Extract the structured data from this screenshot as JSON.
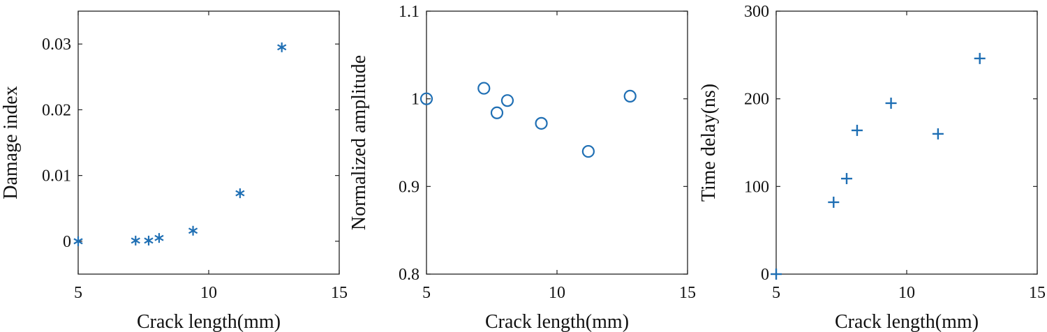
{
  "chart_data": [
    {
      "type": "scatter",
      "marker": "asterisk",
      "color": "#1f6fb4",
      "xlabel": "Crack length(mm)",
      "ylabel": "Damage index",
      "xlim": [
        5,
        15
      ],
      "ylim": [
        -0.005,
        0.035
      ],
      "xticks": [
        5,
        10,
        15
      ],
      "xtick_labels": [
        "5",
        "10",
        "15"
      ],
      "yticks": [
        0,
        0.01,
        0.02,
        0.03
      ],
      "ytick_labels": [
        "0",
        "0.01",
        "0.02",
        "0.03"
      ],
      "grid": false,
      "x": [
        5.0,
        7.2,
        7.7,
        8.1,
        9.4,
        11.2,
        12.8
      ],
      "y": [
        0.0,
        0.0001,
        0.0001,
        0.0005,
        0.0016,
        0.0073,
        0.0295
      ]
    },
    {
      "type": "scatter",
      "marker": "circle",
      "color": "#1f6fb4",
      "xlabel": "Crack length(mm)",
      "ylabel": "Normalized amplitude",
      "xlim": [
        5,
        15
      ],
      "ylim": [
        0.8,
        1.1
      ],
      "xticks": [
        5,
        10,
        15
      ],
      "xtick_labels": [
        "5",
        "10",
        "15"
      ],
      "yticks": [
        0.8,
        0.9,
        1.0,
        1.1
      ],
      "ytick_labels": [
        "0.8",
        "0.9",
        "1",
        "1.1"
      ],
      "grid": false,
      "x": [
        5.0,
        7.2,
        7.7,
        8.1,
        9.4,
        11.2,
        12.8
      ],
      "y": [
        1.0,
        1.012,
        0.984,
        0.998,
        0.972,
        0.94,
        1.003
      ]
    },
    {
      "type": "scatter",
      "marker": "plus",
      "color": "#1f6fb4",
      "xlabel": "Crack length(mm)",
      "ylabel": "Time delay(ns)",
      "xlim": [
        5,
        15
      ],
      "ylim": [
        0,
        300
      ],
      "xticks": [
        5,
        10,
        15
      ],
      "xtick_labels": [
        "5",
        "10",
        "15"
      ],
      "yticks": [
        0,
        100,
        200,
        300
      ],
      "ytick_labels": [
        "0",
        "100",
        "200",
        "300"
      ],
      "grid": false,
      "x": [
        5.0,
        7.2,
        7.7,
        8.1,
        9.4,
        11.2,
        12.8
      ],
      "y": [
        0,
        82,
        109,
        164,
        195,
        160,
        246
      ]
    }
  ]
}
